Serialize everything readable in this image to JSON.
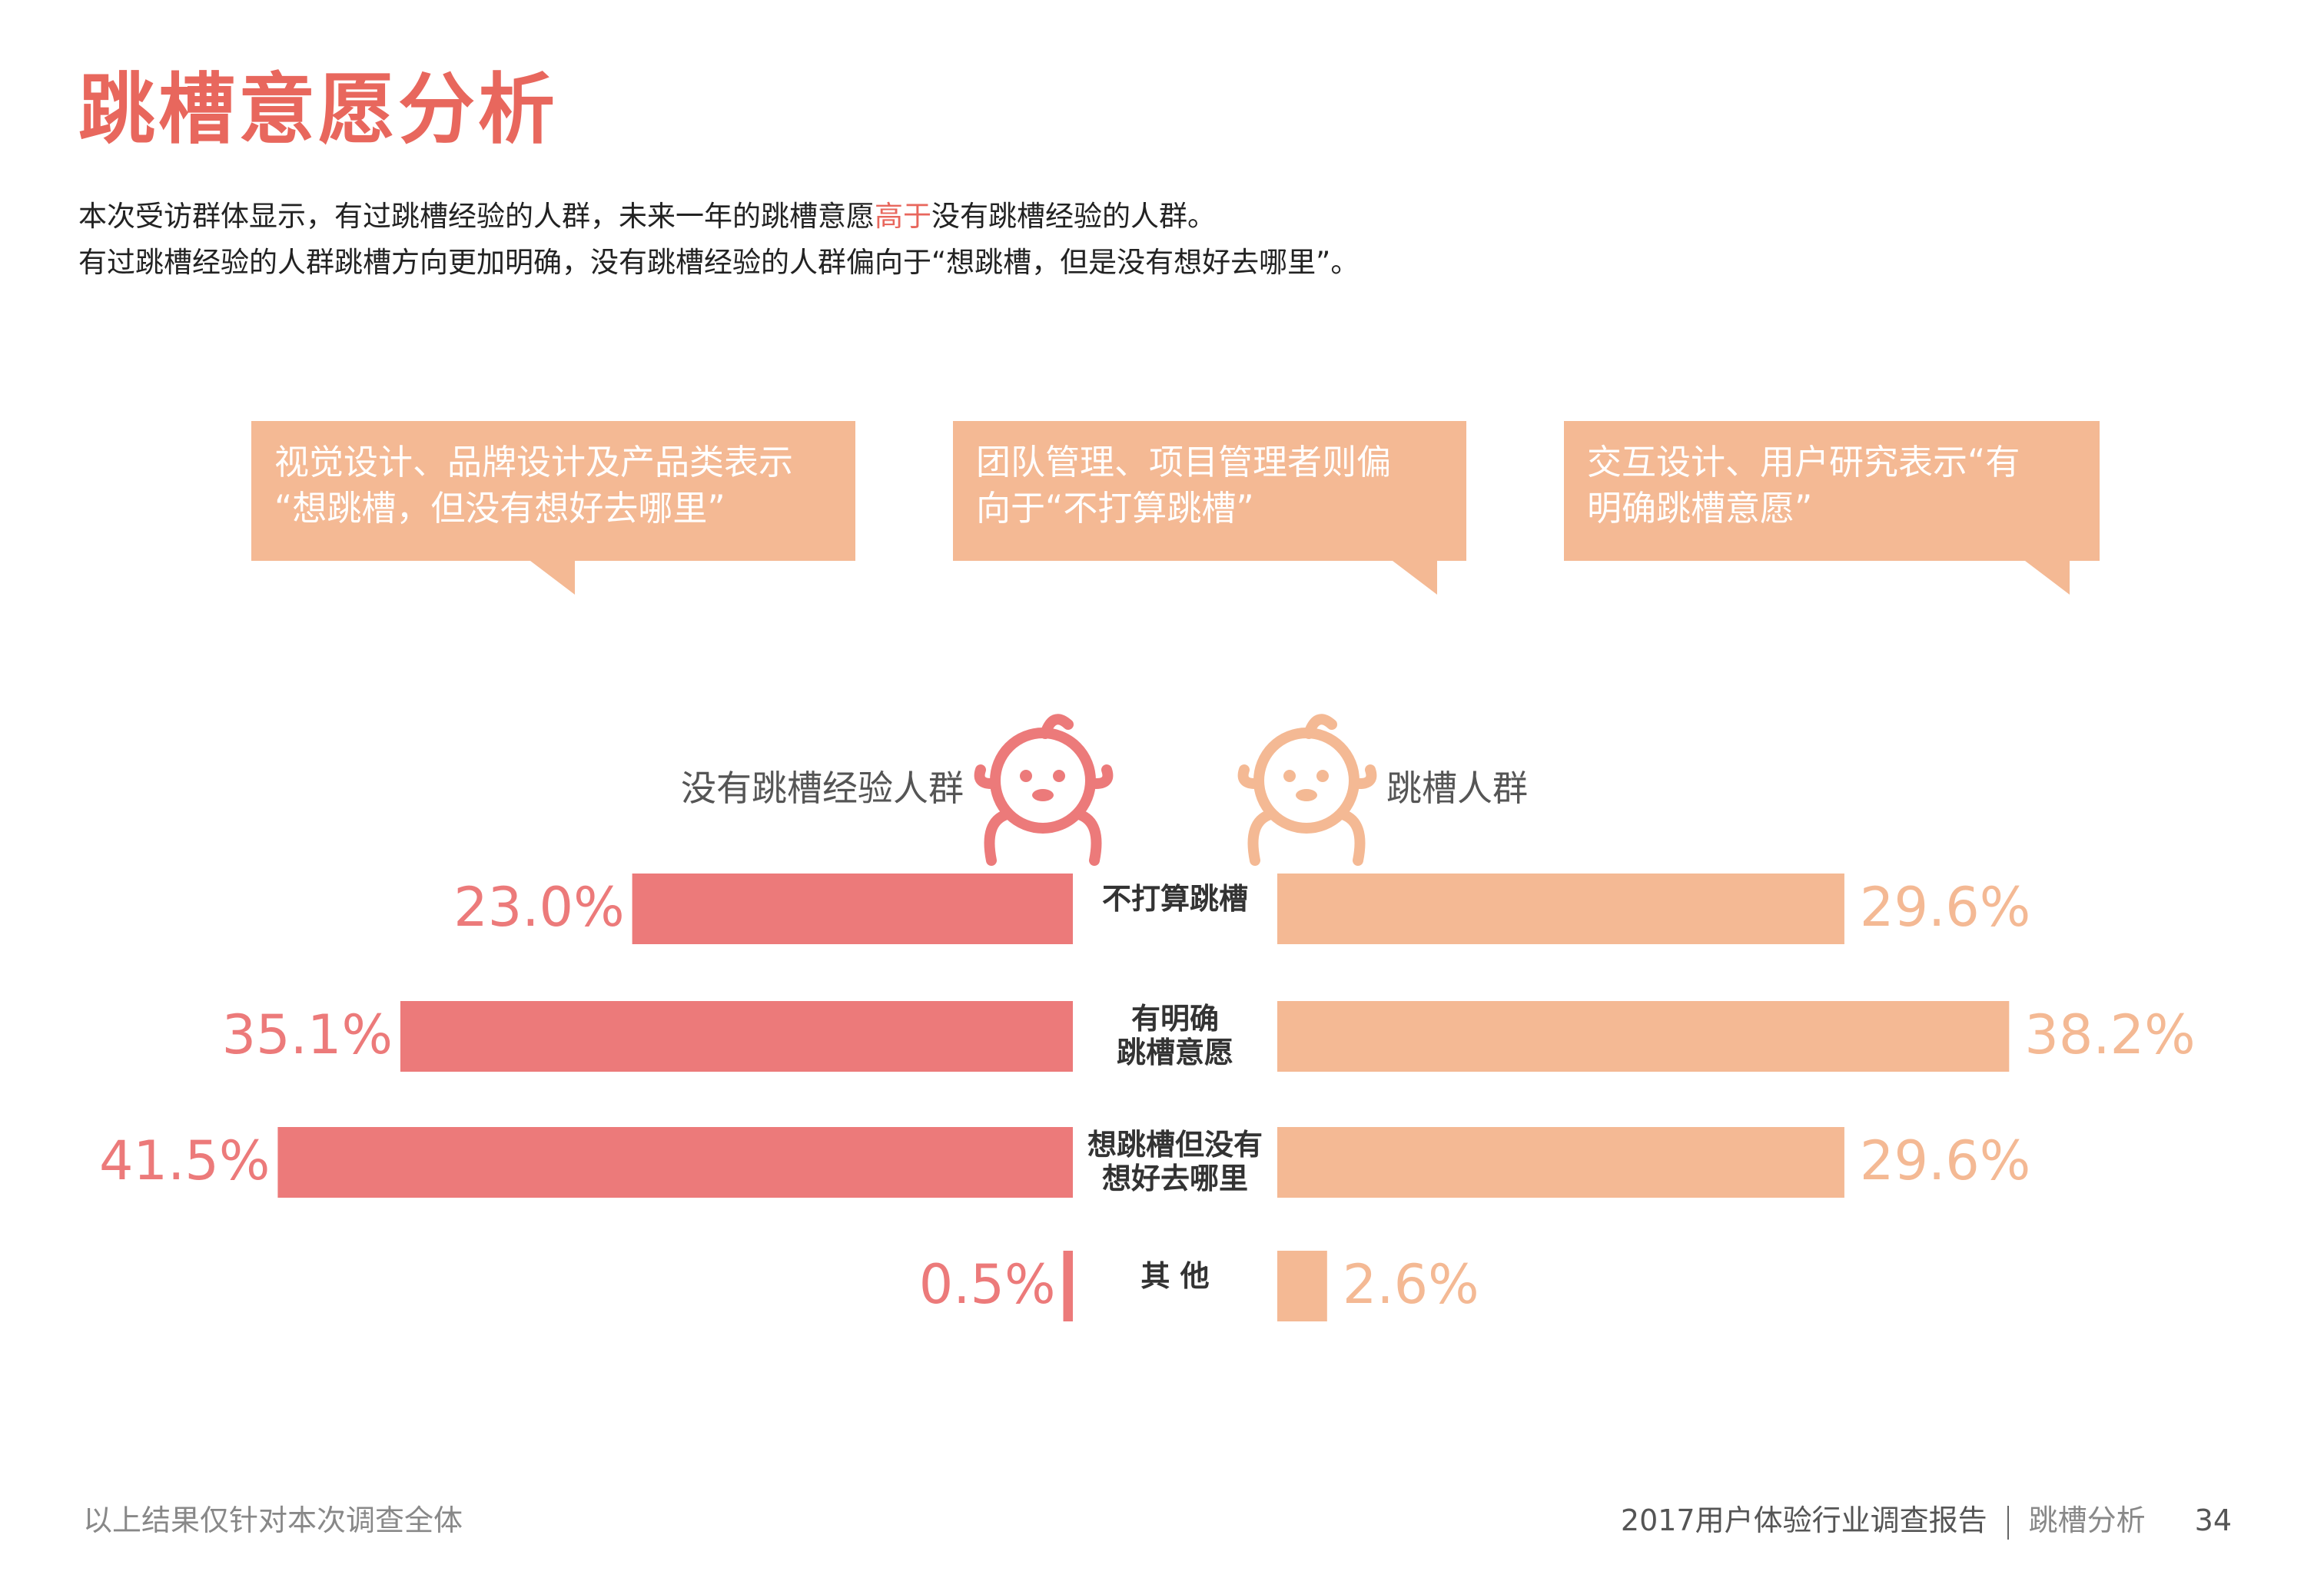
{
  "page": {
    "title": "跳槽意愿分析",
    "desc_line1_a": "本次受访群体显示，有过跳槽经验的人群，未来一年的跳槽意愿",
    "desc_line1_hl": "高于",
    "desc_line1_b": "没有跳槽经验的人群。",
    "desc_line2": "有过跳槽经验的人群跳槽方向更加明确，没有跳槽经验的人群偏向于“想跳槽，但是没有想好去哪里”。"
  },
  "bubbles": [
    {
      "line1": "视觉设计、品牌设计及产品类表示",
      "line2": "“想跳槽，但没有想好去哪里”"
    },
    {
      "line1": "团队管理、项目管理者则偏",
      "line2": "向于“不打算跳槽”"
    },
    {
      "line1": "交互设计、用户研究表示“有",
      "line2": "明确跳槽意愿”"
    }
  ],
  "icons": {
    "left": "face-icon",
    "right": "face-icon"
  },
  "colors": {
    "left": "#ec7a7a",
    "right": "#f4b994",
    "accent": "#e8675d"
  },
  "chart_data": {
    "type": "bar",
    "orientation": "horizontal-butterfly",
    "categories": [
      "不打算跳槽",
      "有明确\n跳槽意愿",
      "想跳槽但没有\n想好去哪里",
      "其 他"
    ],
    "series": [
      {
        "name": "没有跳槽经验人群",
        "values": [
          23.0,
          35.1,
          41.5,
          0.5
        ],
        "labels": [
          "23.0%",
          "35.1%",
          "41.5%",
          "0.5%"
        ]
      },
      {
        "name": "跳槽人群",
        "values": [
          29.6,
          38.2,
          29.6,
          2.6
        ],
        "labels": [
          "29.6%",
          "38.2%",
          "29.6%",
          "2.6%"
        ]
      }
    ],
    "unit": "%",
    "grid": false
  },
  "footer": {
    "note": "以上结果仅针对本次调查全体",
    "report": "2017用户体验行业调查报告",
    "section": "跳槽分析",
    "page_number": "34"
  }
}
